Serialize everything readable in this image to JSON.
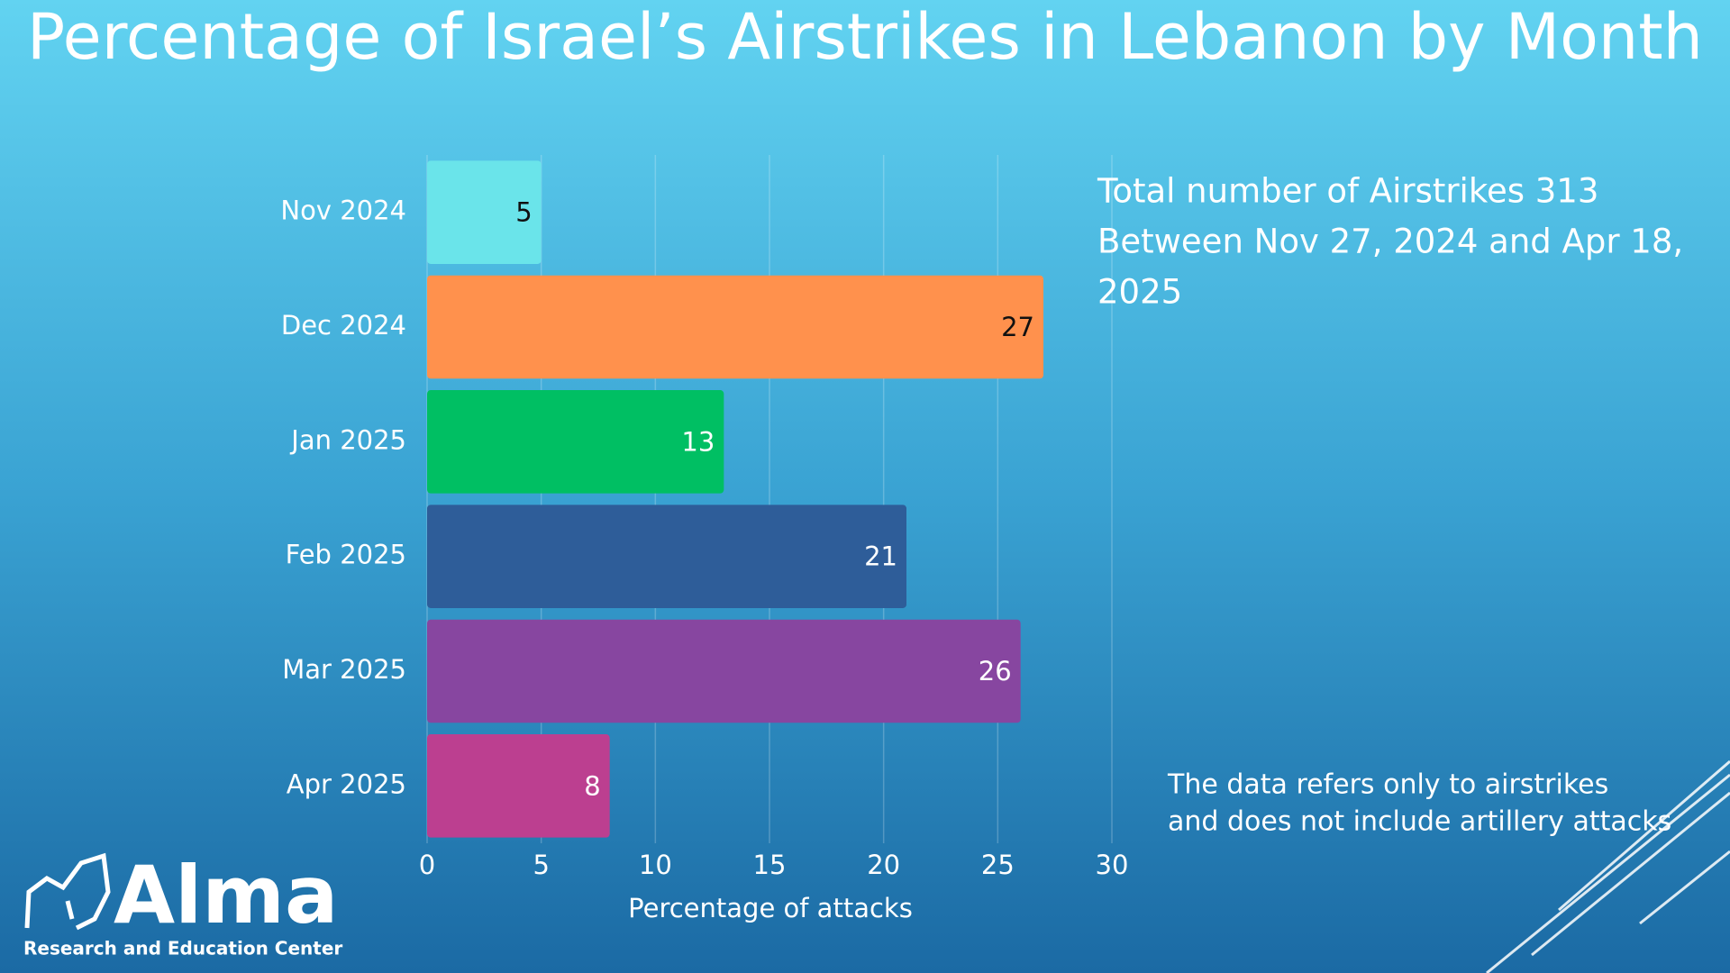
{
  "chart_data": {
    "type": "bar",
    "orientation": "horizontal",
    "title": "Percentage of Israel’s Airstrikes in Lebanon by Month",
    "categories": [
      "Nov 2024",
      "Dec 2024",
      "Jan 2025",
      "Feb 2025",
      "Mar 2025",
      "Apr 2025"
    ],
    "values": [
      5,
      27,
      13,
      21,
      26,
      8
    ],
    "colors": [
      "#6ae4ea",
      "#ff914d",
      "#00bf63",
      "#2e5d99",
      "#8746a0",
      "#bc3f90"
    ],
    "xlim": [
      0,
      30
    ],
    "xticks": [
      0,
      5,
      10,
      15,
      20,
      25,
      30
    ],
    "grid": true,
    "xlabel": "Percentage of attacks",
    "annotation": [
      "Total number of Airstrikes 313",
      "Between Nov 27, 2024 and Apr 18,",
      "2025"
    ],
    "note": [
      "The data refers only to airstrikes",
      "and does not include artillery attacks"
    ]
  },
  "logo": {
    "name": "Alma",
    "tagline": "Research and Education Center"
  }
}
